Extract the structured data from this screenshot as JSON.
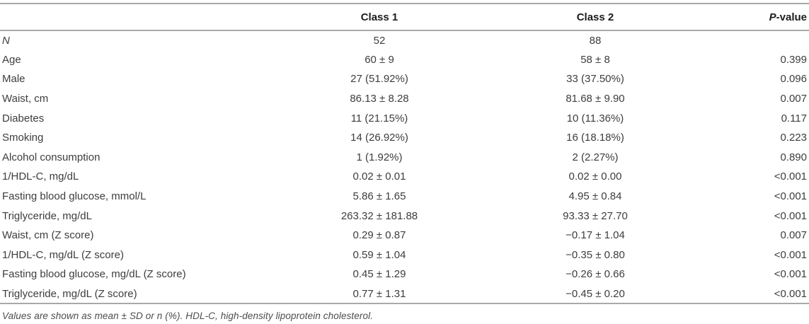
{
  "page": {
    "background_color": "#ffffff",
    "rule_color": "#a9a9a9",
    "body_text_color": "#3d3d3d",
    "header_text_color": "#1c1c1c"
  },
  "table": {
    "header": {
      "label": "",
      "class1": "Class 1",
      "class2": "Class 2",
      "p_italic": "P",
      "p_rest": "-value"
    },
    "rows": [
      {
        "label": "N",
        "label_italic": true,
        "class1": "52",
        "class2": "88",
        "p": ""
      },
      {
        "label": "Age",
        "label_italic": false,
        "class1": "60 ± 9",
        "class2": "58 ± 8",
        "p": "0.399"
      },
      {
        "label": "Male",
        "label_italic": false,
        "class1": "27 (51.92%)",
        "class2": "33 (37.50%)",
        "p": "0.096"
      },
      {
        "label": "Waist, cm",
        "label_italic": false,
        "class1": "86.13 ± 8.28",
        "class2": "81.68 ± 9.90",
        "p": "0.007"
      },
      {
        "label": "Diabetes",
        "label_italic": false,
        "class1": "11 (21.15%)",
        "class2": "10 (11.36%)",
        "p": "0.117"
      },
      {
        "label": "Smoking",
        "label_italic": false,
        "class1": "14 (26.92%)",
        "class2": "16 (18.18%)",
        "p": "0.223"
      },
      {
        "label": "Alcohol consumption",
        "label_italic": false,
        "class1": "1 (1.92%)",
        "class2": "2 (2.27%)",
        "p": "0.890"
      },
      {
        "label": "1/HDL-C, mg/dL",
        "label_italic": false,
        "class1": "0.02 ± 0.01",
        "class2": "0.02 ± 0.00",
        "p": "<0.001"
      },
      {
        "label": "Fasting blood glucose, mmol/L",
        "label_italic": false,
        "class1": "5.86 ± 1.65",
        "class2": "4.95 ± 0.84",
        "p": "<0.001"
      },
      {
        "label": "Triglyceride, mg/dL",
        "label_italic": false,
        "class1": "263.32 ± 181.88",
        "class2": "93.33 ± 27.70",
        "p": "<0.001"
      },
      {
        "label": "Waist, cm (Z score)",
        "label_italic": false,
        "class1": "0.29 ± 0.87",
        "class2": "−0.17 ± 1.04",
        "p": "0.007"
      },
      {
        "label": "1/HDL-C, mg/dL (Z score)",
        "label_italic": false,
        "class1": "0.59 ± 1.04",
        "class2": "−0.35 ± 0.80",
        "p": "<0.001"
      },
      {
        "label": "Fasting blood glucose, mg/dL (Z score)",
        "label_italic": false,
        "class1": "0.45 ± 1.29",
        "class2": "−0.26 ± 0.66",
        "p": "<0.001"
      },
      {
        "label": "Triglyceride, mg/dL (Z score)",
        "label_italic": false,
        "class1": "0.77 ± 1.31",
        "class2": "−0.45 ± 0.20",
        "p": "<0.001"
      }
    ],
    "footnote": "Values are shown as mean ± SD or n (%). HDL-C, high-density lipoprotein cholesterol."
  }
}
